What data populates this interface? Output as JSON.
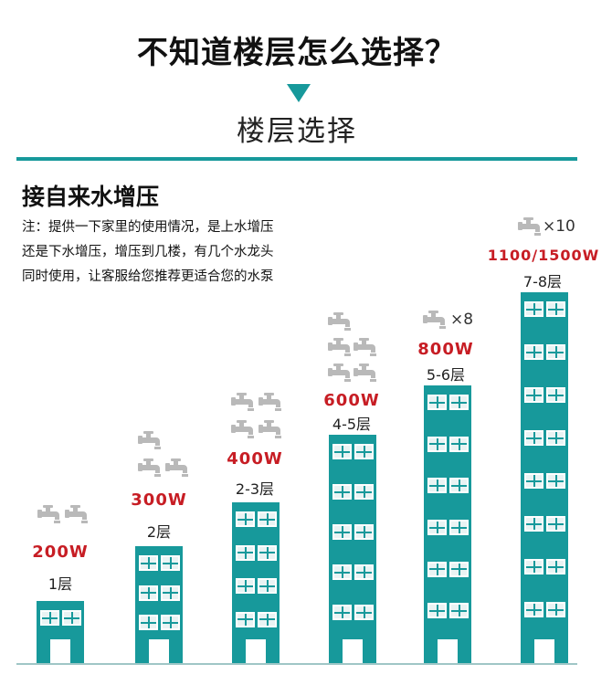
{
  "header": {
    "title": "不知道楼层怎么选择？",
    "subtitle": "楼层选择"
  },
  "section": {
    "heading": "接自来水增压",
    "note_lines": [
      "注：提供一下家里的使用情况，是上水增压",
      "还是下水增压，增压到几楼，有几个水龙头",
      "同时使用，让客服给您推荐更适合您的水泵"
    ]
  },
  "tiers": [
    {
      "power": "200W",
      "floors": "1层"
    },
    {
      "power": "300W",
      "floors": "2层"
    },
    {
      "power": "400W",
      "floors": "2-3层"
    },
    {
      "power": "600W",
      "floors": "4-5层"
    },
    {
      "power": "800W",
      "floors": "5-6层",
      "tap_count": "×8"
    },
    {
      "power": "1100/1500W",
      "floors": "7-8层",
      "tap_count": "×10"
    }
  ],
  "colors": {
    "accent": "#17999b",
    "power": "#c71d24",
    "icon": "#b9b9b9"
  },
  "icons": {
    "tap": "faucet-icon",
    "marker": "triangle-down-icon"
  }
}
